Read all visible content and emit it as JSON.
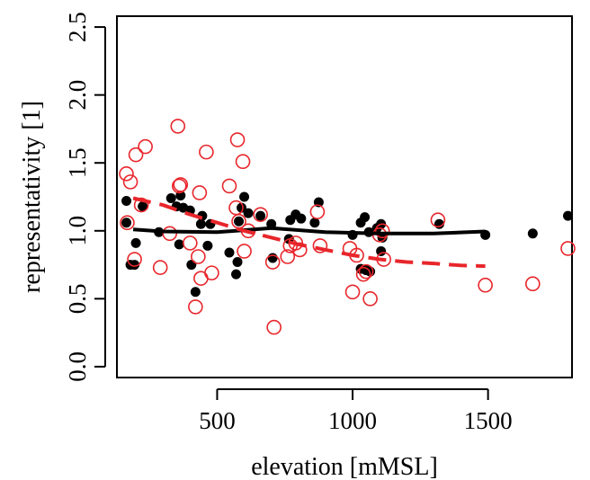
{
  "chart_data": {
    "type": "scatter",
    "title": "",
    "xlabel": "elevation  [mMSL]",
    "ylabel": "representativity  [1]",
    "xlim": [
      130,
      1810
    ],
    "ylim": [
      -0.08,
      2.58
    ],
    "x_ticks": [
      500,
      1000,
      1500
    ],
    "x_tick_labels": [
      "500",
      "1000",
      "1500"
    ],
    "y_ticks": [
      0.0,
      0.5,
      1.0,
      1.5,
      2.0,
      2.5
    ],
    "y_tick_labels": [
      "0.0",
      "0.5",
      "1.0",
      "1.5",
      "2.0",
      "2.5"
    ],
    "grid": false,
    "legend": "none",
    "series": [
      {
        "marker": "filled-circle",
        "color": "#000000",
        "points": [
          [
            165,
            1.22
          ],
          [
            165,
            1.06
          ],
          [
            180,
            0.75
          ],
          [
            195,
            0.75
          ],
          [
            200,
            0.91
          ],
          [
            225,
            1.18
          ],
          [
            285,
            0.99
          ],
          [
            330,
            1.24
          ],
          [
            350,
            1.18
          ],
          [
            360,
            0.9
          ],
          [
            365,
            1.26
          ],
          [
            375,
            1.17
          ],
          [
            400,
            1.15
          ],
          [
            405,
            0.75
          ],
          [
            420,
            0.55
          ],
          [
            440,
            1.05
          ],
          [
            445,
            1.11
          ],
          [
            465,
            0.89
          ],
          [
            475,
            1.05
          ],
          [
            545,
            0.84
          ],
          [
            570,
            0.68
          ],
          [
            575,
            0.77
          ],
          [
            580,
            1.07
          ],
          [
            590,
            1.17
          ],
          [
            600,
            1.25
          ],
          [
            615,
            1.13
          ],
          [
            660,
            1.11
          ],
          [
            700,
            1.05
          ],
          [
            705,
            0.8
          ],
          [
            765,
            0.94
          ],
          [
            770,
            1.08
          ],
          [
            790,
            1.12
          ],
          [
            810,
            1.09
          ],
          [
            860,
            1.06
          ],
          [
            875,
            1.21
          ],
          [
            1000,
            0.97
          ],
          [
            1030,
            1.06
          ],
          [
            1030,
            0.72
          ],
          [
            1045,
            1.1
          ],
          [
            1050,
            0.71
          ],
          [
            1060,
            0.99
          ],
          [
            1065,
            0.7
          ],
          [
            1090,
            1.02
          ],
          [
            1105,
            1.05
          ],
          [
            1105,
            0.85
          ],
          [
            1110,
            0.95
          ],
          [
            1320,
            1.05
          ],
          [
            1490,
            0.97
          ],
          [
            1665,
            0.98
          ],
          [
            1795,
            1.11
          ]
        ]
      },
      {
        "marker": "open-circle",
        "color": "#e8262b",
        "points": [
          [
            165,
            1.42
          ],
          [
            168,
            1.06
          ],
          [
            180,
            1.36
          ],
          [
            195,
            0.79
          ],
          [
            200,
            1.56
          ],
          [
            220,
            1.19
          ],
          [
            235,
            1.62
          ],
          [
            290,
            0.73
          ],
          [
            325,
            0.98
          ],
          [
            355,
            1.77
          ],
          [
            360,
            1.33
          ],
          [
            365,
            1.34
          ],
          [
            400,
            0.91
          ],
          [
            420,
            0.44
          ],
          [
            430,
            0.81
          ],
          [
            435,
            1.28
          ],
          [
            440,
            0.65
          ],
          [
            460,
            1.58
          ],
          [
            480,
            0.69
          ],
          [
            545,
            1.33
          ],
          [
            570,
            1.17
          ],
          [
            575,
            1.67
          ],
          [
            580,
            1.07
          ],
          [
            595,
            1.51
          ],
          [
            600,
            0.85
          ],
          [
            615,
            1.0
          ],
          [
            660,
            1.12
          ],
          [
            705,
            0.77
          ],
          [
            710,
            0.29
          ],
          [
            760,
            0.81
          ],
          [
            770,
            0.89
          ],
          [
            790,
            0.91
          ],
          [
            805,
            0.86
          ],
          [
            870,
            1.14
          ],
          [
            880,
            0.89
          ],
          [
            990,
            0.87
          ],
          [
            1000,
            0.55
          ],
          [
            1015,
            0.82
          ],
          [
            1040,
            0.68
          ],
          [
            1050,
            0.7
          ],
          [
            1065,
            0.5
          ],
          [
            1100,
            0.97
          ],
          [
            1110,
            1.0
          ],
          [
            1115,
            0.79
          ],
          [
            1315,
            1.08
          ],
          [
            1490,
            0.6
          ],
          [
            1665,
            0.61
          ],
          [
            1795,
            0.87
          ]
        ]
      }
    ],
    "trend_lines": [
      {
        "color": "#000000",
        "style": "solid",
        "points": [
          [
            190,
            1.01
          ],
          [
            300,
            0.995
          ],
          [
            500,
            0.99
          ],
          [
            700,
            1.02
          ],
          [
            900,
            0.99
          ],
          [
            1100,
            0.98
          ],
          [
            1300,
            0.98
          ],
          [
            1490,
            0.995
          ]
        ]
      },
      {
        "color": "#e8262b",
        "style": "dashed",
        "points": [
          [
            190,
            1.24
          ],
          [
            300,
            1.19
          ],
          [
            400,
            1.12
          ],
          [
            500,
            1.06
          ],
          [
            600,
            1.0
          ],
          [
            700,
            0.95
          ],
          [
            800,
            0.9
          ],
          [
            900,
            0.86
          ],
          [
            1000,
            0.82
          ],
          [
            1100,
            0.79
          ],
          [
            1200,
            0.77
          ],
          [
            1300,
            0.76
          ],
          [
            1400,
            0.745
          ],
          [
            1490,
            0.74
          ]
        ]
      }
    ]
  }
}
